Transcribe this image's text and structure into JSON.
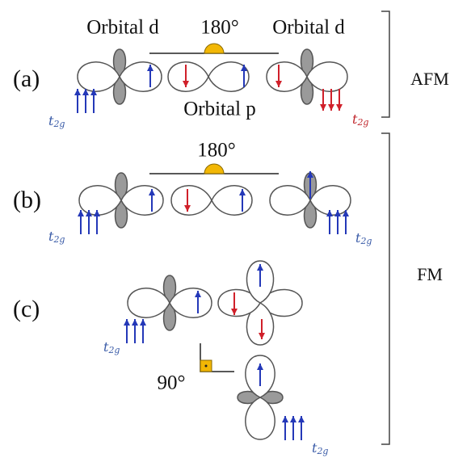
{
  "panel_a": {
    "label": "(a)",
    "orbital_left": "Orbital d",
    "angle": "180°",
    "orbital_right": "Orbital d",
    "orbital_middle": "Orbital p",
    "t2g_left": {
      "base": "t",
      "sub": "2g"
    },
    "t2g_right": {
      "base": "t",
      "sub": "2g"
    }
  },
  "panel_b": {
    "label": "(b)",
    "angle": "180°",
    "t2g_left": {
      "base": "t",
      "sub": "2g"
    },
    "t2g_right": {
      "base": "t",
      "sub": "2g"
    }
  },
  "panel_c": {
    "label": "(c)",
    "angle": "90°",
    "t2g_left": {
      "base": "t",
      "sub": "2g"
    },
    "t2g_bottom": {
      "base": "t",
      "sub": "2g"
    }
  },
  "groups": {
    "afm": "AFM",
    "fm": "FM"
  }
}
